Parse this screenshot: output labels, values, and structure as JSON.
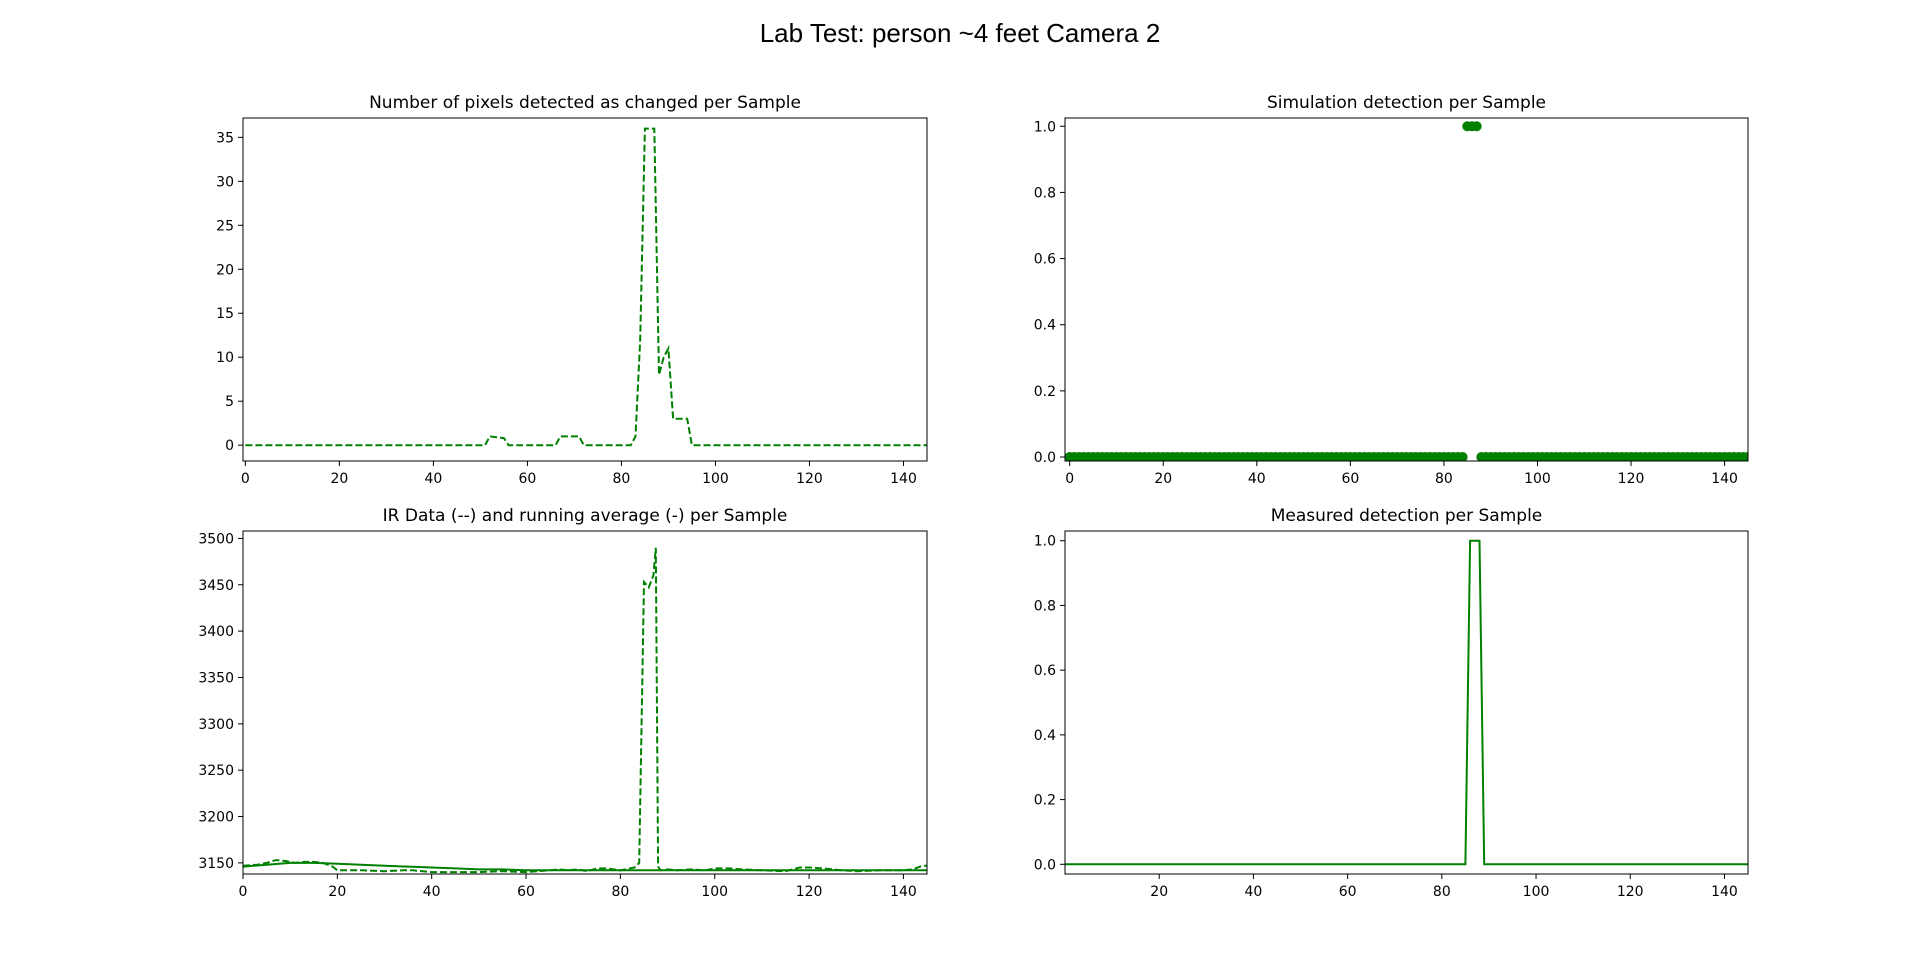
{
  "figure_title": "Lab Test: person ~4 feet Camera 2",
  "colors": {
    "series": "#008000"
  },
  "chart_data": [
    {
      "id": "pixels",
      "type": "line",
      "title": "Number of pixels detected as changed per Sample",
      "xlim": [
        -0.5,
        145
      ],
      "ylim": [
        -1.8,
        37.2
      ],
      "xticks": [
        0,
        20,
        40,
        60,
        80,
        100,
        120,
        140
      ],
      "yticks": [
        0,
        5,
        10,
        15,
        20,
        25,
        30,
        35
      ],
      "series": [
        {
          "style": "dashed",
          "points": [
            [
              0,
              0
            ],
            [
              51,
              0
            ],
            [
              52,
              1
            ],
            [
              55,
              0.8
            ],
            [
              56,
              0
            ],
            [
              66,
              0
            ],
            [
              67,
              1
            ],
            [
              71,
              1
            ],
            [
              72,
              0
            ],
            [
              82,
              0
            ],
            [
              83,
              1
            ],
            [
              84,
              12
            ],
            [
              85,
              36
            ],
            [
              87,
              36
            ],
            [
              88,
              8
            ],
            [
              89,
              10
            ],
            [
              90,
              11
            ],
            [
              91,
              3
            ],
            [
              94,
              3
            ],
            [
              95,
              0
            ],
            [
              145,
              0
            ]
          ]
        }
      ]
    },
    {
      "id": "simulation",
      "type": "scatter",
      "title": "Simulation detection per Sample",
      "xlim": [
        -1,
        145
      ],
      "ylim": [
        -0.012,
        1.025
      ],
      "xticks": [
        0,
        20,
        40,
        60,
        80,
        100,
        120,
        140
      ],
      "yticks": [
        0.0,
        0.2,
        0.4,
        0.6,
        0.8,
        1.0
      ],
      "points_zero_ranges": [
        [
          0,
          84
        ],
        [
          88,
          145
        ]
      ],
      "points_one": [
        85,
        86,
        87
      ]
    },
    {
      "id": "ir",
      "type": "line",
      "title": "IR Data (--) and running average (-) per Sample",
      "xlim": [
        0,
        145
      ],
      "ylim": [
        3138,
        3508
      ],
      "xticks": [
        0,
        20,
        40,
        60,
        80,
        100,
        120,
        140
      ],
      "yticks": [
        3150,
        3200,
        3250,
        3300,
        3350,
        3400,
        3450,
        3500
      ],
      "series": [
        {
          "style": "dashed",
          "points": [
            [
              0,
              3147
            ],
            [
              3,
              3148
            ],
            [
              5,
              3150
            ],
            [
              7,
              3153
            ],
            [
              9,
              3152
            ],
            [
              11,
              3150
            ],
            [
              13,
              3151
            ],
            [
              15,
              3151
            ],
            [
              17,
              3150
            ],
            [
              19,
              3146
            ],
            [
              20,
              3142
            ],
            [
              25,
              3142
            ],
            [
              30,
              3141
            ],
            [
              34,
              3142
            ],
            [
              36,
              3142
            ],
            [
              40,
              3140
            ],
            [
              45,
              3140
            ],
            [
              50,
              3140
            ],
            [
              55,
              3141
            ],
            [
              60,
              3140
            ],
            [
              65,
              3142
            ],
            [
              67,
              3143
            ],
            [
              69,
              3142
            ],
            [
              71,
              3143
            ],
            [
              73,
              3141
            ],
            [
              75,
              3144
            ],
            [
              77,
              3144
            ],
            [
              80,
              3142
            ],
            [
              83,
              3145
            ],
            [
              84,
              3150
            ],
            [
              85,
              3453
            ],
            [
              86,
              3447
            ],
            [
              87,
              3460
            ],
            [
              87.5,
              3490
            ],
            [
              88,
              3146
            ],
            [
              88.5,
              3142
            ],
            [
              90,
              3143
            ],
            [
              92,
              3142
            ],
            [
              95,
              3143
            ],
            [
              98,
              3142
            ],
            [
              100,
              3144
            ],
            [
              103,
              3144
            ],
            [
              106,
              3143
            ],
            [
              110,
              3142
            ],
            [
              115,
              3141
            ],
            [
              118,
              3145
            ],
            [
              120,
              3145
            ],
            [
              123,
              3144
            ],
            [
              127,
              3142
            ],
            [
              130,
              3141
            ],
            [
              135,
              3142
            ],
            [
              140,
              3142
            ],
            [
              142,
              3143
            ],
            [
              144,
              3147
            ],
            [
              145,
              3147
            ]
          ]
        },
        {
          "style": "solid",
          "points": [
            [
              0,
              3146
            ],
            [
              5,
              3148
            ],
            [
              10,
              3150
            ],
            [
              15,
              3150
            ],
            [
              20,
              3149
            ],
            [
              25,
              3148
            ],
            [
              30,
              3147
            ],
            [
              35,
              3146
            ],
            [
              40,
              3145
            ],
            [
              45,
              3144
            ],
            [
              50,
              3143
            ],
            [
              55,
              3143
            ],
            [
              60,
              3142
            ],
            [
              65,
              3142
            ],
            [
              70,
              3142
            ],
            [
              75,
              3142
            ],
            [
              80,
              3142
            ],
            [
              85,
              3142
            ],
            [
              90,
              3142
            ],
            [
              95,
              3142
            ],
            [
              100,
              3142
            ],
            [
              110,
              3142
            ],
            [
              120,
              3142
            ],
            [
              130,
              3142
            ],
            [
              140,
              3142
            ],
            [
              145,
              3142
            ]
          ]
        }
      ]
    },
    {
      "id": "measured",
      "type": "line",
      "title": "Measured detection per Sample",
      "xlim": [
        0,
        145
      ],
      "ylim": [
        -0.03,
        1.03
      ],
      "xticks": [
        20,
        40,
        60,
        80,
        100,
        120,
        140
      ],
      "yticks": [
        0.0,
        0.2,
        0.4,
        0.6,
        0.8,
        1.0
      ],
      "series": [
        {
          "style": "solid",
          "points": [
            [
              0,
              0
            ],
            [
              85,
              0
            ],
            [
              86,
              1
            ],
            [
              88,
              1
            ],
            [
              89,
              0
            ],
            [
              145,
              0
            ]
          ]
        }
      ]
    }
  ]
}
